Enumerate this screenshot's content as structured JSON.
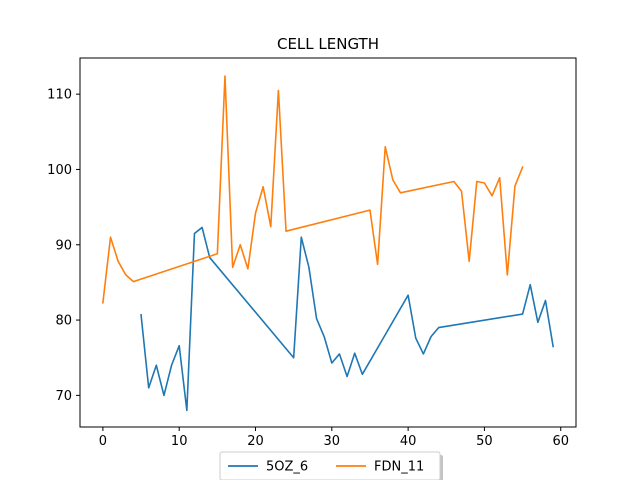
{
  "chart_data": {
    "type": "line",
    "title": "CELL LENGTH",
    "xlabel": "",
    "ylabel": "",
    "xlim": [
      -3,
      62
    ],
    "ylim": [
      65.8,
      114.8
    ],
    "xticks": [
      0,
      10,
      20,
      30,
      40,
      50,
      60
    ],
    "yticks": [
      70,
      80,
      90,
      100,
      110
    ],
    "grid": false,
    "legend_position": "bottom-center",
    "series": [
      {
        "name": "5OZ_6",
        "color": "#1f77b4",
        "points": [
          [
            5,
            80.7
          ],
          [
            6,
            71.0
          ],
          [
            7,
            74.0
          ],
          [
            8,
            70.0
          ],
          [
            9,
            74.0
          ],
          [
            10,
            76.6
          ],
          [
            11,
            68.0
          ],
          [
            12,
            91.5
          ],
          [
            13,
            92.3
          ],
          [
            14,
            88.3
          ],
          [
            25,
            75.0
          ],
          [
            26,
            91.0
          ],
          [
            27,
            87.0
          ],
          [
            28,
            80.2
          ],
          [
            29,
            77.8
          ],
          [
            30,
            74.3
          ],
          [
            31,
            75.5
          ],
          [
            32,
            72.5
          ],
          [
            33,
            75.6
          ],
          [
            34,
            72.8
          ],
          [
            40,
            83.3
          ],
          [
            41,
            77.6
          ],
          [
            42,
            75.5
          ],
          [
            43,
            77.8
          ],
          [
            44,
            79.0
          ],
          [
            55,
            80.8
          ],
          [
            56,
            84.7
          ],
          [
            57,
            79.7
          ],
          [
            58,
            82.6
          ],
          [
            59,
            76.5
          ]
        ]
      },
      {
        "name": "FDN_11",
        "color": "#ff7f0e",
        "points": [
          [
            0,
            82.3
          ],
          [
            1,
            91.0
          ],
          [
            2,
            87.8
          ],
          [
            3,
            86.0
          ],
          [
            4,
            85.1
          ],
          [
            15,
            88.8
          ],
          [
            16,
            112.4
          ],
          [
            17,
            87.0
          ],
          [
            18,
            90.0
          ],
          [
            19,
            86.8
          ],
          [
            20,
            94.2
          ],
          [
            21,
            97.7
          ],
          [
            22,
            92.4
          ],
          [
            23,
            110.5
          ],
          [
            24,
            91.8
          ],
          [
            35,
            94.6
          ],
          [
            36,
            87.4
          ],
          [
            37,
            103.0
          ],
          [
            38,
            98.6
          ],
          [
            39,
            96.9
          ],
          [
            46,
            98.4
          ],
          [
            47,
            97.1
          ],
          [
            48,
            87.8
          ],
          [
            49,
            98.4
          ],
          [
            50,
            98.2
          ],
          [
            51,
            96.5
          ],
          [
            52,
            98.9
          ],
          [
            53,
            86.0
          ],
          [
            54,
            97.8
          ],
          [
            55,
            100.3
          ]
        ]
      }
    ]
  }
}
